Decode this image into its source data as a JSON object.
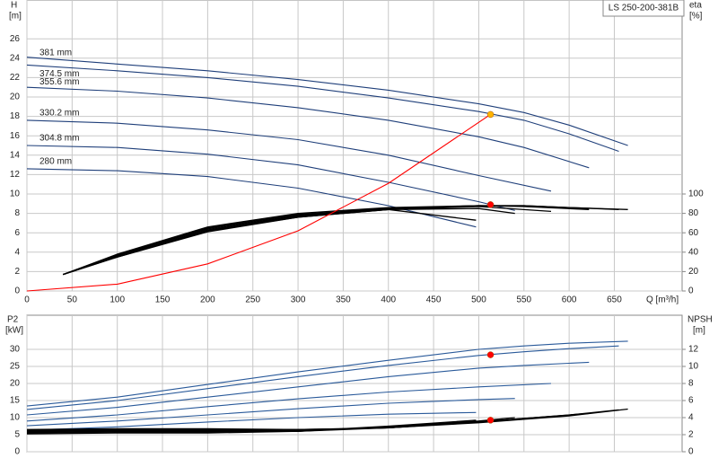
{
  "chart_data": [
    {
      "type": "line",
      "title": "LS 250-200-381B",
      "y_label": "H",
      "y_unit": "[m]",
      "y2_label": "eta",
      "y2_unit": "[%]",
      "x_label": "Q [m³/h]",
      "xlim": [
        0,
        725
      ],
      "xticks": [
        0,
        50,
        100,
        150,
        200,
        250,
        300,
        350,
        400,
        450,
        500,
        550,
        600,
        650
      ],
      "ylim": [
        0,
        30
      ],
      "yticks": [
        0,
        2,
        4,
        6,
        8,
        10,
        12,
        14,
        16,
        18,
        20,
        22,
        24,
        26
      ],
      "y2lim": [
        0,
        300
      ],
      "y2ticks": [
        0,
        20,
        40,
        60,
        80,
        100
      ],
      "grid": true,
      "series": [
        {
          "name": "381 mm",
          "color": "#1f3f7a",
          "x": [
            0,
            100,
            200,
            300,
            400,
            500,
            550,
            600,
            665
          ],
          "values": [
            24.1,
            23.4,
            22.7,
            21.8,
            20.7,
            19.3,
            18.4,
            17.1,
            15.0
          ]
        },
        {
          "name": "374.5 mm",
          "color": "#1f3f7a",
          "x": [
            0,
            100,
            200,
            300,
            400,
            500,
            550,
            600,
            655
          ],
          "values": [
            23.3,
            22.7,
            22.0,
            21.1,
            19.9,
            18.5,
            17.6,
            16.2,
            14.4
          ]
        },
        {
          "name": "355.6 mm",
          "color": "#1f3f7a",
          "x": [
            0,
            100,
            200,
            300,
            400,
            500,
            550,
            622
          ],
          "values": [
            21.0,
            20.6,
            19.9,
            18.9,
            17.6,
            15.9,
            14.8,
            12.7
          ]
        },
        {
          "name": "330.2 mm",
          "color": "#1f3f7a",
          "x": [
            0,
            100,
            200,
            300,
            400,
            500,
            580
          ],
          "values": [
            17.6,
            17.3,
            16.6,
            15.6,
            14.0,
            11.9,
            10.3
          ]
        },
        {
          "name": "304.8 mm",
          "color": "#1f3f7a",
          "x": [
            0,
            100,
            200,
            300,
            400,
            500,
            540
          ],
          "values": [
            15.0,
            14.8,
            14.1,
            13.0,
            11.2,
            9.2,
            8.3
          ]
        },
        {
          "name": "280 mm",
          "color": "#1f3f7a",
          "x": [
            0,
            100,
            200,
            300,
            400,
            497
          ],
          "values": [
            12.6,
            12.4,
            11.8,
            10.6,
            8.8,
            6.6
          ]
        },
        {
          "axis": "y2",
          "color": "#000000",
          "x": [
            40,
            100,
            200,
            300,
            400,
            500,
            550,
            600,
            665
          ],
          "values": [
            17,
            38,
            66,
            80,
            86,
            88,
            88,
            86,
            84
          ]
        },
        {
          "axis": "y2",
          "color": "#000000",
          "x": [
            40,
            100,
            200,
            300,
            400,
            500,
            550,
            600,
            655
          ],
          "values": [
            17,
            37,
            65,
            79,
            85,
            88,
            88,
            86,
            84
          ]
        },
        {
          "axis": "y2",
          "color": "#000000",
          "x": [
            40,
            100,
            200,
            300,
            400,
            500,
            550,
            622
          ],
          "values": [
            17,
            37,
            64,
            78,
            85,
            88,
            87,
            84
          ]
        },
        {
          "axis": "y2",
          "color": "#000000",
          "x": [
            40,
            100,
            200,
            300,
            400,
            500,
            580
          ],
          "values": [
            17,
            36,
            63,
            77,
            84,
            87,
            82
          ]
        },
        {
          "axis": "y2",
          "color": "#000000",
          "x": [
            40,
            100,
            200,
            300,
            400,
            500,
            540
          ],
          "values": [
            17,
            35,
            62,
            76,
            84,
            85,
            80
          ]
        },
        {
          "axis": "y2",
          "color": "#000000",
          "x": [
            40,
            100,
            200,
            300,
            400,
            497
          ],
          "values": [
            17,
            35,
            61,
            76,
            84,
            73
          ]
        },
        {
          "color": "#ff0000",
          "x": [
            0,
            100,
            200,
            300,
            400,
            513
          ],
          "values": [
            0,
            0.7,
            2.8,
            6.2,
            11.1,
            18.2
          ]
        }
      ],
      "points": [
        {
          "x": 513,
          "value": 18.2,
          "color": "#ffb400"
        },
        {
          "x": 513,
          "value": 89,
          "axis": "y2",
          "color": "#ff0000"
        }
      ]
    },
    {
      "type": "line",
      "y_label": "P2",
      "y_unit": "[kW]",
      "y2_label": "NPSH",
      "y2_unit": "[m]",
      "xlim": [
        0,
        725
      ],
      "ylim": [
        0,
        40
      ],
      "yticks": [
        0,
        5,
        10,
        15,
        20,
        25,
        30
      ],
      "y2lim": [
        0,
        16
      ],
      "y2ticks": [
        0,
        2,
        4,
        6,
        8,
        10,
        12
      ],
      "grid": true,
      "series": [
        {
          "color": "#2a5a9a",
          "x": [
            0,
            100,
            200,
            300,
            400,
            500,
            550,
            600,
            665
          ],
          "values": [
            13.4,
            16,
            19.7,
            23.4,
            26.8,
            30,
            31,
            31.8,
            32.4
          ]
        },
        {
          "color": "#2a5a9a",
          "x": [
            0,
            100,
            200,
            300,
            400,
            500,
            550,
            600,
            655
          ],
          "values": [
            12.4,
            15,
            18.5,
            22,
            25.3,
            28.2,
            29.3,
            30.2,
            31
          ]
        },
        {
          "color": "#2a5a9a",
          "x": [
            0,
            100,
            200,
            300,
            400,
            500,
            550,
            622
          ],
          "values": [
            10.8,
            13,
            16,
            19,
            22,
            24.5,
            25.3,
            26.2
          ]
        },
        {
          "color": "#2a5a9a",
          "x": [
            0,
            100,
            200,
            300,
            400,
            500,
            580
          ],
          "values": [
            9,
            10.8,
            13.2,
            15.5,
            17.5,
            19,
            20
          ]
        },
        {
          "color": "#2a5a9a",
          "x": [
            0,
            100,
            200,
            300,
            400,
            500,
            540
          ],
          "values": [
            7.6,
            9,
            10.8,
            12.6,
            14.2,
            15.3,
            15.6
          ]
        },
        {
          "color": "#2a5a9a",
          "x": [
            0,
            100,
            200,
            300,
            400,
            497
          ],
          "values": [
            6.3,
            7.3,
            8.7,
            10,
            11,
            11.5
          ]
        },
        {
          "axis": "y2",
          "color": "#000000",
          "x": [
            0,
            100,
            200,
            300,
            400,
            500,
            550,
            600,
            665
          ],
          "values": [
            2.6,
            2.7,
            2.7,
            2.6,
            2.8,
            3.4,
            3.8,
            4.2,
            5.0
          ]
        },
        {
          "axis": "y2",
          "color": "#000000",
          "x": [
            0,
            100,
            200,
            300,
            400,
            500,
            550,
            600,
            655
          ],
          "values": [
            2.5,
            2.6,
            2.6,
            2.6,
            2.8,
            3.5,
            3.9,
            4.3,
            4.9
          ]
        },
        {
          "axis": "y2",
          "color": "#000000",
          "x": [
            0,
            100,
            200,
            300,
            400,
            500,
            550,
            622
          ],
          "values": [
            2.4,
            2.5,
            2.5,
            2.5,
            2.8,
            3.5,
            3.9,
            4.5
          ]
        },
        {
          "axis": "y2",
          "color": "#000000",
          "x": [
            0,
            100,
            200,
            300,
            400,
            500,
            580
          ],
          "values": [
            2.3,
            2.4,
            2.4,
            2.4,
            2.8,
            3.5,
            4.1
          ]
        },
        {
          "axis": "y2",
          "color": "#000000",
          "x": [
            0,
            100,
            200,
            300,
            400,
            500,
            540
          ],
          "values": [
            2.2,
            2.3,
            2.3,
            2.4,
            2.9,
            3.6,
            4.0
          ]
        },
        {
          "axis": "y2",
          "color": "#000000",
          "x": [
            0,
            100,
            200,
            300,
            400,
            497
          ],
          "values": [
            2.1,
            2.2,
            2.2,
            2.4,
            3.0,
            3.7
          ]
        }
      ],
      "points": [
        {
          "x": 513,
          "value": 28.4,
          "color": "#ff0000"
        },
        {
          "x": 513,
          "value": 3.7,
          "axis": "y2",
          "color": "#ff0000"
        }
      ]
    }
  ]
}
